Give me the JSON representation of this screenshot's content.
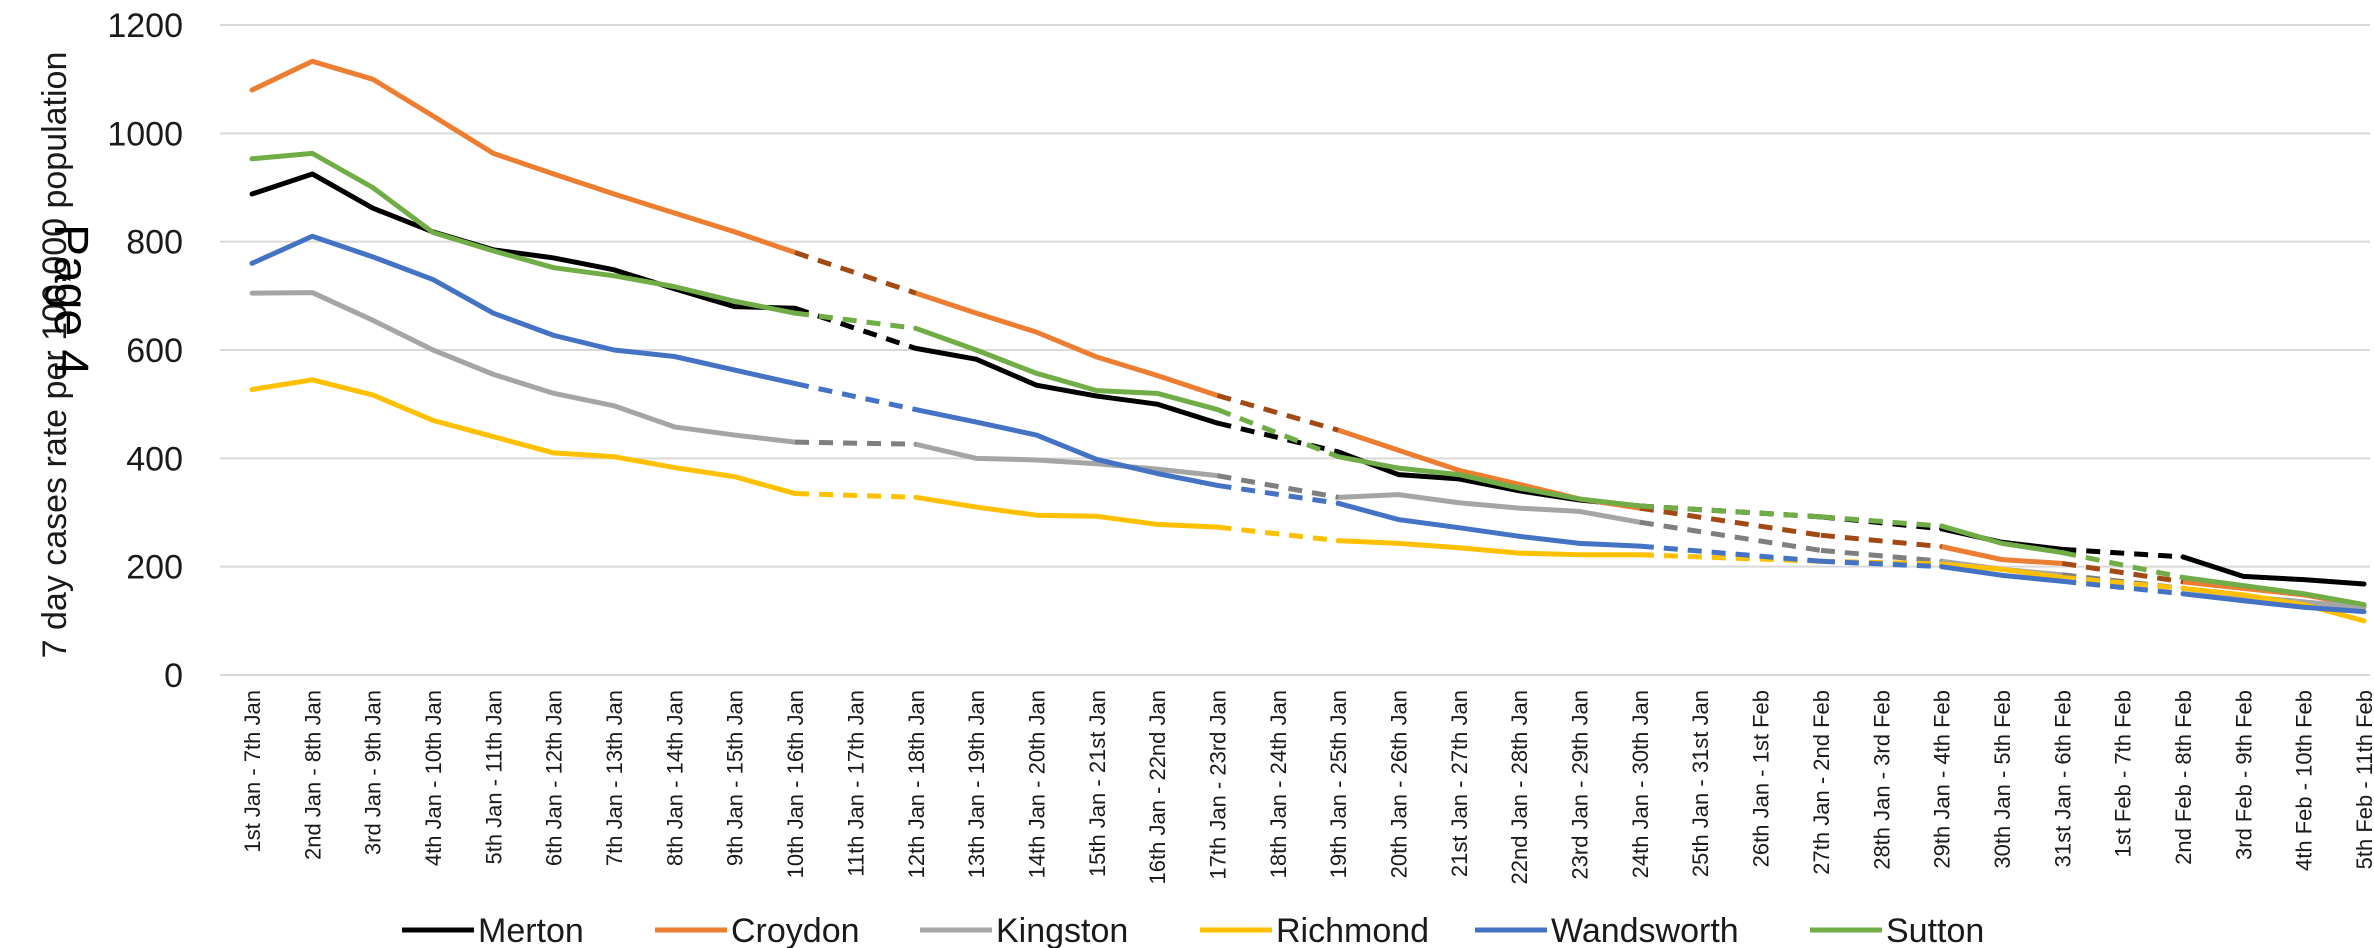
{
  "chart_data": {
    "type": "line",
    "title": "",
    "xlabel": "",
    "ylabel": "7 day cases rate per 100,000 population",
    "ylim": [
      0,
      1200
    ],
    "yticks": [
      0,
      200,
      400,
      600,
      800,
      1000,
      1200
    ],
    "grid": true,
    "legend_position": "bottom",
    "watermark": "Page 4",
    "categories": [
      "1st Jan - 7th Jan",
      "2nd Jan - 8th Jan",
      "3rd Jan - 9th Jan",
      "4th Jan - 10th Jan",
      "5th Jan - 11th Jan",
      "6th Jan - 12th Jan",
      "7th Jan - 13th Jan",
      "8th Jan - 14th Jan",
      "9th Jan - 15th Jan",
      "10th Jan - 16th Jan",
      "11th Jan - 17th Jan",
      "12th Jan - 18th Jan",
      "13th Jan - 19th Jan",
      "14th Jan - 20th Jan",
      "15th Jan - 21st Jan",
      "16th Jan - 22nd Jan",
      "17th Jan - 23rd Jan",
      "18th Jan - 24th Jan",
      "19th Jan - 25th Jan",
      "20th Jan - 26th Jan",
      "21st Jan - 27th Jan",
      "22nd Jan - 28th Jan",
      "23rd Jan - 29th Jan",
      "24th Jan - 30th Jan",
      "25th Jan - 31st Jan",
      "26th Jan - 1st Feb",
      "27th Jan - 2nd Feb",
      "28th Jan - 3rd Feb",
      "29th Jan - 4th Feb",
      "30th Jan - 5th Feb",
      "31st Jan - 6th Feb",
      "1st Feb - 7th Feb",
      "2nd Feb - 8th Feb",
      "3rd Feb - 9th Feb",
      "4th Feb - 10th Feb",
      "5th Feb - 11th Feb"
    ],
    "series": [
      {
        "name": "Merton",
        "color": "#000000",
        "dashed_color": "#000000",
        "values": [
          888,
          925,
          862,
          818,
          785,
          770,
          748,
          713,
          680,
          677,
          null,
          603,
          583,
          535,
          515,
          500,
          465,
          null,
          412,
          370,
          362,
          340,
          323,
          312,
          null,
          null,
          292,
          null,
          270,
          245,
          232,
          null,
          218,
          182,
          176,
          168
        ],
        "dashed": [
          [
            9,
            11
          ],
          [
            16,
            18
          ],
          [
            23,
            26
          ],
          [
            26,
            28
          ],
          [
            30,
            32
          ]
        ]
      },
      {
        "name": "Croydon",
        "color": "#ED7D31",
        "dashed_color": "#A34A14",
        "values": [
          1080,
          1133,
          1100,
          1032,
          963,
          925,
          888,
          853,
          818,
          780,
          null,
          705,
          668,
          633,
          587,
          553,
          516,
          null,
          452,
          415,
          378,
          352,
          325,
          308,
          null,
          null,
          258,
          null,
          237,
          213,
          206,
          null,
          172,
          160,
          148,
          128
        ],
        "dashed": [
          [
            9,
            11
          ],
          [
            16,
            18
          ],
          [
            23,
            26
          ],
          [
            26,
            28
          ],
          [
            30,
            32
          ]
        ]
      },
      {
        "name": "Kingston",
        "color": "#A5A5A5",
        "dashed_color": "#7F7F7F",
        "values": [
          705,
          706,
          655,
          600,
          555,
          520,
          497,
          458,
          443,
          430,
          null,
          426,
          400,
          397,
          390,
          380,
          368,
          null,
          328,
          333,
          318,
          308,
          302,
          282,
          null,
          null,
          230,
          null,
          210,
          195,
          185,
          null,
          160,
          145,
          135,
          125
        ],
        "dashed": [
          [
            9,
            11
          ],
          [
            16,
            18
          ],
          [
            23,
            26
          ],
          [
            26,
            28
          ],
          [
            30,
            32
          ]
        ]
      },
      {
        "name": "Richmond",
        "color": "#FFC000",
        "dashed_color": "#FFC000",
        "values": [
          527,
          545,
          517,
          470,
          440,
          410,
          403,
          383,
          366,
          335,
          null,
          328,
          310,
          295,
          293,
          278,
          273,
          null,
          248,
          243,
          235,
          225,
          222,
          222,
          null,
          null,
          210,
          null,
          205,
          195,
          180,
          null,
          160,
          148,
          130,
          100
        ],
        "dashed": [
          [
            9,
            11
          ],
          [
            16,
            18
          ],
          [
            23,
            26
          ],
          [
            26,
            28
          ],
          [
            30,
            32
          ]
        ]
      },
      {
        "name": "Wandsworth",
        "color": "#4472C4",
        "dashed_color": "#4472C4",
        "values": [
          760,
          810,
          772,
          730,
          668,
          627,
          600,
          588,
          563,
          538,
          null,
          490,
          467,
          443,
          398,
          372,
          350,
          null,
          317,
          287,
          272,
          256,
          243,
          238,
          null,
          null,
          210,
          null,
          200,
          184,
          173,
          null,
          150,
          137,
          125,
          117
        ],
        "dashed": [
          [
            9,
            11
          ],
          [
            16,
            18
          ],
          [
            23,
            26
          ],
          [
            26,
            28
          ],
          [
            30,
            32
          ]
        ]
      },
      {
        "name": "Sutton",
        "color": "#70AD47",
        "dashed_color": "#70AD47",
        "values": [
          953,
          963,
          900,
          817,
          783,
          752,
          737,
          717,
          690,
          668,
          null,
          640,
          600,
          557,
          525,
          520,
          490,
          null,
          403,
          382,
          370,
          345,
          325,
          312,
          null,
          null,
          292,
          null,
          275,
          243,
          226,
          null,
          180,
          165,
          150,
          130
        ],
        "dashed": [
          [
            9,
            11
          ],
          [
            16,
            18
          ],
          [
            23,
            26
          ],
          [
            26,
            28
          ],
          [
            30,
            32
          ]
        ]
      }
    ]
  }
}
